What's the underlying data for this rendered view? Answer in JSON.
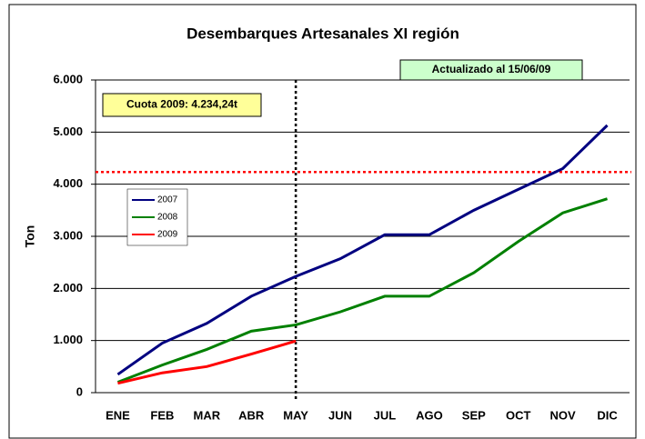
{
  "chart_data": {
    "type": "line",
    "title": "Desembarques Artesanales XI región",
    "y_label": "Ton",
    "categories": [
      "ENE",
      "FEB",
      "MAR",
      "ABR",
      "MAY",
      "JUN",
      "JUL",
      "AGO",
      "SEP",
      "OCT",
      "NOV",
      "DIC"
    ],
    "series": [
      {
        "name": "2007",
        "color": "#000080",
        "values": [
          350,
          950,
          1330,
          1850,
          2230,
          2570,
          3030,
          3030,
          3500,
          3900,
          4300,
          5130
        ]
      },
      {
        "name": "2008",
        "color": "#008000",
        "values": [
          200,
          530,
          830,
          1180,
          1300,
          1550,
          1850,
          1850,
          2300,
          2900,
          3450,
          3720
        ]
      },
      {
        "name": "2009",
        "color": "#ff0000",
        "values": [
          180,
          380,
          500,
          740,
          990,
          null,
          null,
          null,
          null,
          null,
          null,
          null
        ]
      }
    ],
    "ylim": [
      0,
      6000
    ],
    "yticks": [
      0,
      {
        "value": 1000,
        "label": "1.000"
      },
      {
        "value": 2000,
        "label": "2.000"
      },
      {
        "value": 3000,
        "label": "3.000"
      },
      {
        "value": 4000,
        "label": "4.000"
      },
      {
        "value": 5000,
        "label": "5.000"
      },
      {
        "value": 6000,
        "label": "6.000"
      }
    ],
    "grid": true,
    "quota": {
      "value": 4234.24,
      "label": "Cuota 2009: 4.234,24t",
      "color": "#ff0000"
    },
    "update_note": "Actualizado al 15/06/09",
    "vline": "MAY"
  }
}
